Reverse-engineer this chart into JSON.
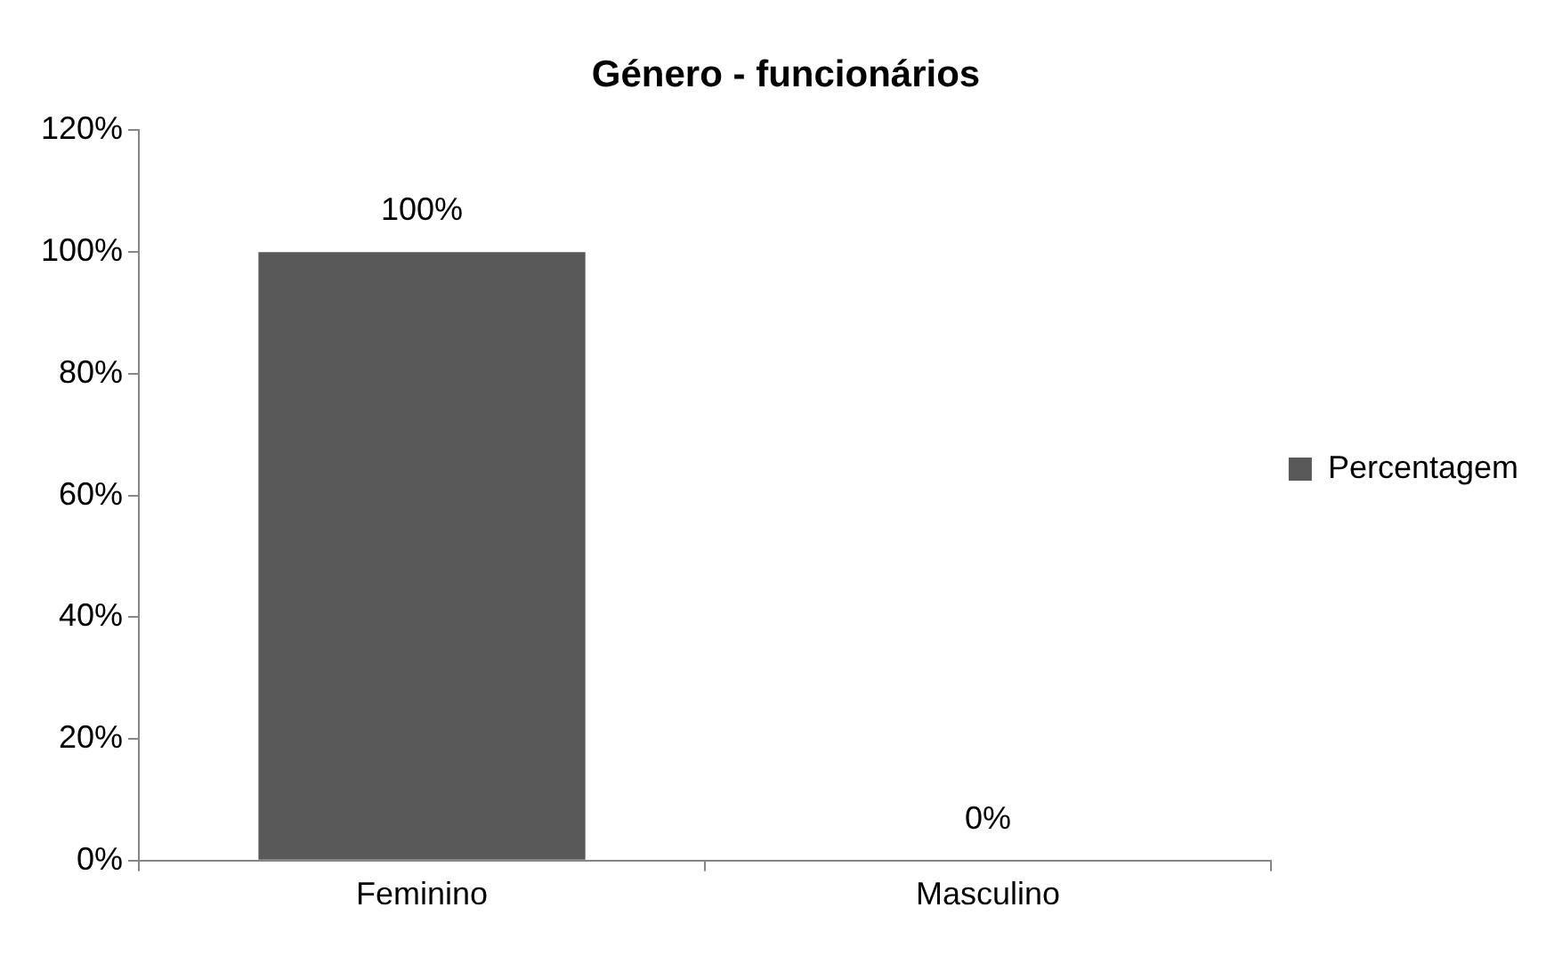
{
  "chart_data": {
    "type": "bar",
    "title": "Género - funcionários",
    "categories": [
      "Feminino",
      "Masculino"
    ],
    "series": [
      {
        "name": "Percentagem",
        "color": "#595959",
        "values": [
          100,
          0
        ],
        "value_labels": [
          "100%",
          "0%"
        ]
      }
    ],
    "ylim": [
      0,
      120
    ],
    "yticks": [
      {
        "value": 0,
        "label": "0%"
      },
      {
        "value": 20,
        "label": "20%"
      },
      {
        "value": 40,
        "label": "40%"
      },
      {
        "value": 60,
        "label": "60%"
      },
      {
        "value": 80,
        "label": "80%"
      },
      {
        "value": 100,
        "label": "100%"
      },
      {
        "value": 120,
        "label": "120%"
      }
    ],
    "grid": false,
    "legend": "right"
  }
}
